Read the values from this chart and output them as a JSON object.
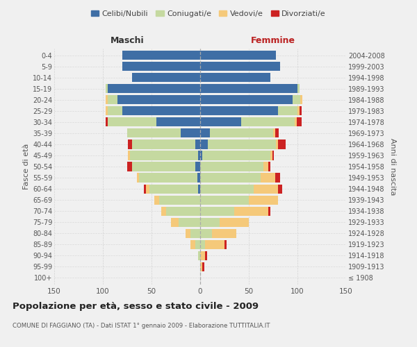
{
  "age_groups": [
    "100+",
    "95-99",
    "90-94",
    "85-89",
    "80-84",
    "75-79",
    "70-74",
    "65-69",
    "60-64",
    "55-59",
    "50-54",
    "45-49",
    "40-44",
    "35-39",
    "30-34",
    "25-29",
    "20-24",
    "15-19",
    "10-14",
    "5-9",
    "0-4"
  ],
  "birth_years": [
    "≤ 1908",
    "1909-1913",
    "1914-1918",
    "1919-1923",
    "1924-1928",
    "1929-1933",
    "1934-1938",
    "1939-1943",
    "1944-1948",
    "1949-1953",
    "1954-1958",
    "1959-1963",
    "1964-1968",
    "1969-1973",
    "1974-1978",
    "1979-1983",
    "1984-1988",
    "1989-1993",
    "1994-1998",
    "1999-2003",
    "2004-2008"
  ],
  "male": {
    "celibi": [
      0,
      0,
      0,
      0,
      0,
      0,
      0,
      0,
      2,
      3,
      5,
      2,
      5,
      20,
      45,
      80,
      85,
      95,
      70,
      80,
      80
    ],
    "coniugati": [
      0,
      0,
      2,
      5,
      10,
      22,
      35,
      42,
      50,
      60,
      65,
      70,
      65,
      55,
      50,
      15,
      10,
      2,
      0,
      0,
      0
    ],
    "vedovi": [
      0,
      0,
      0,
      5,
      5,
      8,
      5,
      5,
      4,
      2,
      0,
      2,
      0,
      0,
      0,
      2,
      2,
      0,
      0,
      0,
      0
    ],
    "divorziati": [
      0,
      0,
      0,
      0,
      0,
      0,
      0,
      0,
      2,
      0,
      5,
      0,
      4,
      0,
      2,
      0,
      0,
      0,
      0,
      0,
      0
    ]
  },
  "female": {
    "nubili": [
      0,
      0,
      0,
      0,
      0,
      0,
      0,
      0,
      0,
      0,
      0,
      2,
      8,
      10,
      42,
      80,
      95,
      100,
      72,
      82,
      78
    ],
    "coniugate": [
      0,
      0,
      0,
      5,
      12,
      20,
      35,
      50,
      55,
      62,
      65,
      70,
      70,
      65,
      55,
      20,
      8,
      2,
      0,
      0,
      0
    ],
    "vedove": [
      0,
      2,
      5,
      20,
      25,
      30,
      35,
      30,
      25,
      15,
      5,
      2,
      2,
      2,
      2,
      2,
      2,
      0,
      0,
      0,
      0
    ],
    "divorziate": [
      0,
      2,
      2,
      2,
      0,
      0,
      2,
      0,
      4,
      5,
      2,
      2,
      8,
      4,
      5,
      2,
      0,
      0,
      0,
      0,
      0
    ]
  },
  "colors": {
    "celibi": "#3f6ea5",
    "coniugati": "#c5d9a0",
    "vedovi": "#f5c97a",
    "divorziati": "#cc2222"
  },
  "title": "Popolazione per età, sesso e stato civile - 2009",
  "subtitle": "COMUNE DI FAGGIANO (TA) - Dati ISTAT 1° gennaio 2009 - Elaborazione TUTTITALIA.IT",
  "xlabel_left": "Maschi",
  "xlabel_right": "Femmine",
  "ylabel_left": "Fasce di età",
  "ylabel_right": "Anni di nascita",
  "xlim": 150,
  "legend_labels": [
    "Celibi/Nubili",
    "Coniugati/e",
    "Vedovi/e",
    "Divorziati/e"
  ],
  "bg_color": "#f0f0f0"
}
